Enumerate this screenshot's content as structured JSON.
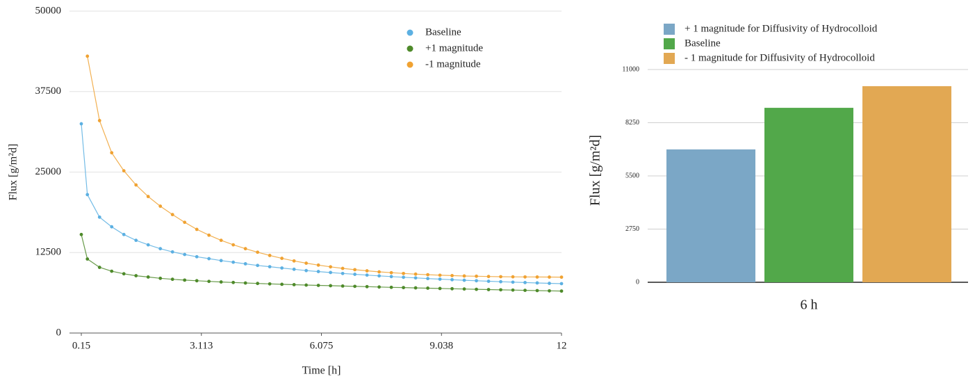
{
  "chart_data": [
    {
      "type": "line",
      "x_label": "Time [h]",
      "y_label": "Flux [g/m²d]",
      "x": [
        0.15,
        0.3,
        0.6,
        0.9,
        1.2,
        1.5,
        1.8,
        2.1,
        2.4,
        2.7,
        3,
        3.3,
        3.6,
        3.9,
        4.2,
        4.5,
        4.8,
        5.1,
        5.4,
        5.7,
        6,
        6.3,
        6.6,
        6.9,
        7.2,
        7.5,
        7.8,
        8.1,
        8.4,
        8.7,
        9,
        9.3,
        9.6,
        9.9,
        10.2,
        10.5,
        10.8,
        11.1,
        11.4,
        11.7,
        12
      ],
      "series": [
        {
          "name": "Baseline",
          "color": "#5cb0e2",
          "values": [
            32500,
            21500,
            18000,
            16500,
            15300,
            14400,
            13700,
            13100,
            12600,
            12200,
            11850,
            11550,
            11250,
            11000,
            10750,
            10500,
            10300,
            10100,
            9900,
            9700,
            9550,
            9400,
            9250,
            9120,
            9000,
            8880,
            8770,
            8660,
            8560,
            8460,
            8370,
            8280,
            8200,
            8120,
            8040,
            7970,
            7900,
            7840,
            7780,
            7720,
            7670
          ]
        },
        {
          "name": "+1 magnitude",
          "color": "#4e8a2a",
          "values": [
            15300,
            11500,
            10200,
            9600,
            9200,
            8900,
            8700,
            8500,
            8350,
            8220,
            8120,
            8020,
            7930,
            7850,
            7770,
            7700,
            7630,
            7570,
            7510,
            7450,
            7400,
            7350,
            7300,
            7250,
            7200,
            7150,
            7100,
            7060,
            7010,
            6970,
            6920,
            6880,
            6840,
            6790,
            6750,
            6710,
            6670,
            6630,
            6590,
            6550,
            6520
          ]
        },
        {
          "name": "-1 magnitude",
          "color": "#f0a232",
          "values": [
            null,
            43000,
            33000,
            28000,
            25200,
            23000,
            21200,
            19700,
            18400,
            17200,
            16100,
            15200,
            14400,
            13700,
            13100,
            12550,
            12050,
            11600,
            11200,
            10850,
            10550,
            10280,
            10040,
            9840,
            9660,
            9500,
            9370,
            9250,
            9150,
            9060,
            8980,
            8920,
            8860,
            8820,
            8780,
            8750,
            8730,
            8710,
            8700,
            8690,
            8680
          ]
        }
      ],
      "xlim": [
        0.15,
        12
      ],
      "xticks": [
        0.15,
        3.113,
        6.075,
        9.038,
        12
      ],
      "ylim": [
        0,
        50000
      ],
      "yticks": [
        0,
        12500,
        25000,
        37500,
        50000
      ],
      "grid": true,
      "legend": "upper right"
    },
    {
      "type": "bar",
      "y_label": "Flux [g/m²d]",
      "categories": [
        "6 h"
      ],
      "series": [
        {
          "name": "+ 1 magnitude for Diffusivity of Hydrocolloid",
          "color": "#7ba7c6",
          "values": [
            6870
          ]
        },
        {
          "name": "Baseline",
          "color": "#52a84a",
          "values": [
            9020
          ]
        },
        {
          "name": "- 1 magnitude for Diffusivity of Hydrocolloid",
          "color": "#e2a853",
          "values": [
            10140
          ]
        }
      ],
      "ylim": [
        0,
        11000
      ],
      "yticks": [
        0,
        2750,
        5500,
        8250,
        11000
      ],
      "grid": true,
      "legend": "upper left"
    }
  ]
}
